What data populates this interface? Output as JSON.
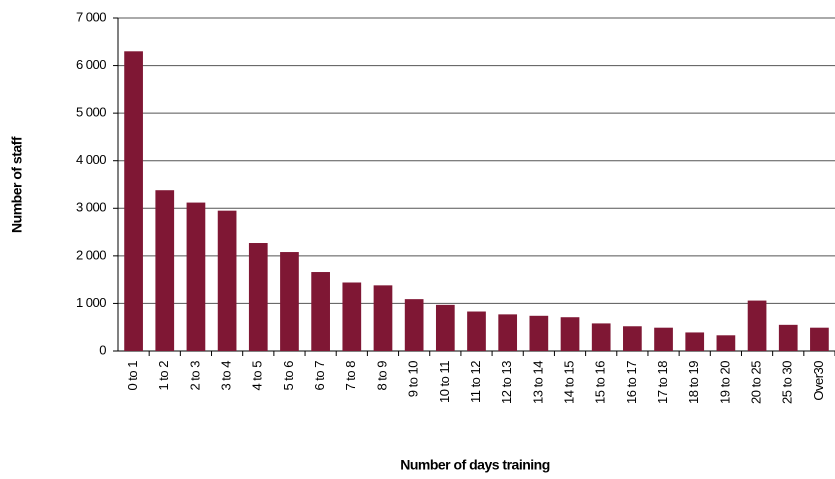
{
  "chart_data": {
    "type": "bar",
    "xlabel": "Number of days training",
    "ylabel": "Number of staff",
    "categories": [
      "0 to 1",
      "1 to 2",
      "2 to 3",
      "3 to 4",
      "4 to 5",
      "5 to 6",
      "6 to 7",
      "7 to 8",
      "8 to 9",
      "9 to 10",
      "10 to 11",
      "11 to 12",
      "12 to 13",
      "13 to 14",
      "14 to 15",
      "15 to 16",
      "16 to 17",
      "17 to 18",
      "18 to 19",
      "19 to 20",
      "20 to 25",
      "25 to 30",
      "Over30"
    ],
    "values": [
      6300,
      3380,
      3120,
      2950,
      2270,
      2080,
      1660,
      1440,
      1380,
      1090,
      970,
      830,
      770,
      740,
      710,
      580,
      520,
      490,
      390,
      330,
      1060,
      550,
      490
    ],
    "color": "#7f1734",
    "ylim": [
      0,
      7000
    ],
    "yticks": [
      0,
      {
        "value": 1000,
        "label": "1 000"
      },
      {
        "value": 2000,
        "label": "2 000"
      },
      {
        "value": 3000,
        "label": "3 000"
      },
      {
        "value": 4000,
        "label": "4 000"
      },
      {
        "value": 5000,
        "label": "5 000"
      },
      {
        "value": 6000,
        "label": "6 000"
      },
      {
        "value": 7000,
        "label": "7 000"
      }
    ],
    "grid": true
  }
}
